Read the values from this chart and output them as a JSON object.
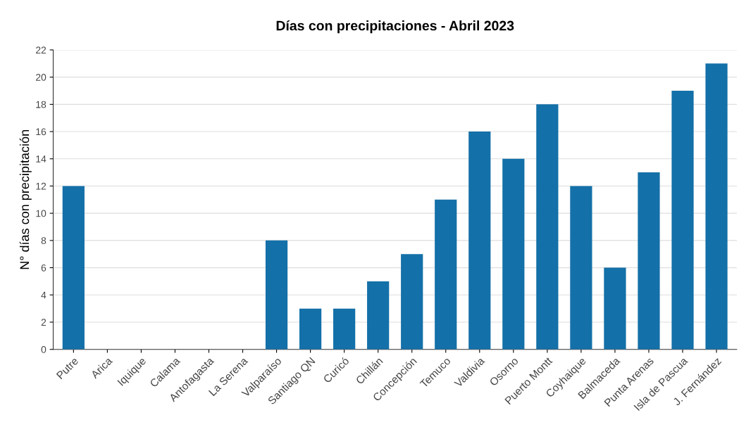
{
  "chart_data": {
    "type": "bar",
    "title": "Días con precipitaciones - Abril 2023",
    "ylabel": "N° días con precipitación",
    "categories": [
      "Putre",
      "Arica",
      "Iquique",
      "Calama",
      "Antofagasta",
      "La Serena",
      "Valparaíso",
      "Santiago QN",
      "Curicó",
      "Chillán",
      "Concepción",
      "Temuco",
      "Valdivia",
      "Osorno",
      "Puerto Montt",
      "Coyhaique",
      "Balmaceda",
      "Punta Arenas",
      "Isla de Pascua",
      "J. Fernández"
    ],
    "values": [
      12,
      0,
      0,
      0,
      0,
      0,
      8,
      3,
      3,
      5,
      7,
      11,
      16,
      14,
      18,
      12,
      6,
      13,
      19,
      21
    ],
    "color": "#1470a8",
    "ylim": [
      0,
      22
    ],
    "yticks": [
      0,
      2,
      4,
      6,
      8,
      10,
      12,
      14,
      16,
      18,
      20,
      22
    ],
    "grid": "y"
  }
}
